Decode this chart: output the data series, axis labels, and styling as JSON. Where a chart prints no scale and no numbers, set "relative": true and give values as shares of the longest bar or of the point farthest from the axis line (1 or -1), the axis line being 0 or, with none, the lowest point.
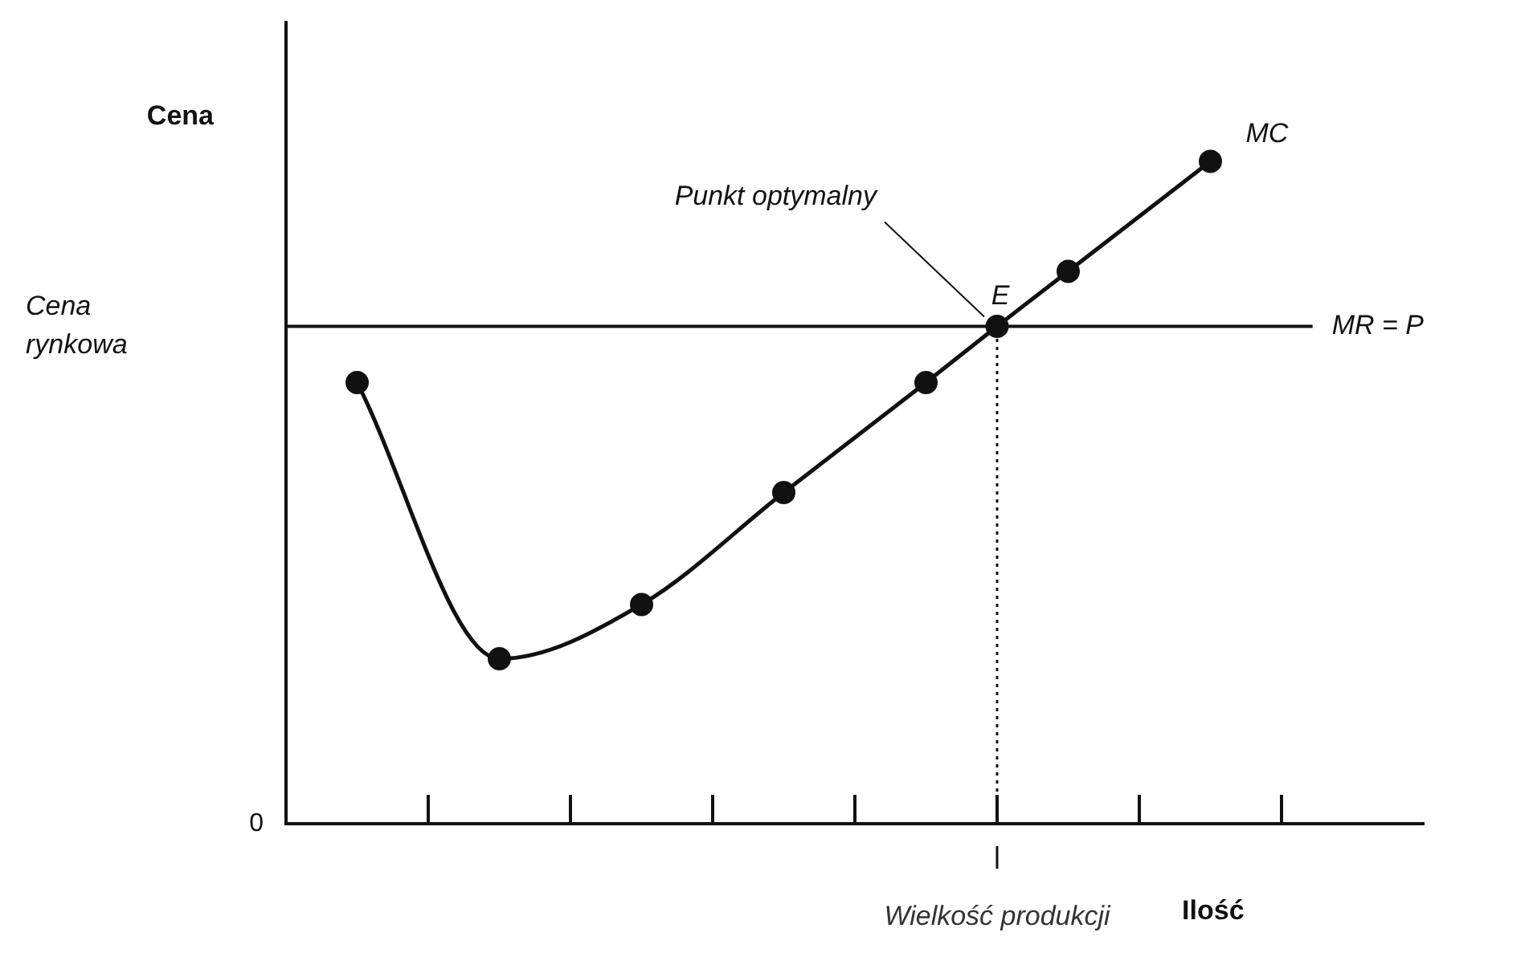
{
  "chart_data": {
    "type": "line",
    "ylabel": "Cena",
    "xlabel": "Ilość",
    "relative": true,
    "grid": false,
    "legend": false,
    "marker": "circle",
    "line_style": "solid",
    "categories": [
      null,
      null,
      null,
      null,
      null,
      null,
      null,
      null,
      null,
      null,
      null,
      null,
      null,
      null,
      null,
      null,
      null
    ],
    "series": [
      {
        "name": "MC",
        "color": "#111111",
        "values": [
          null,
          0.666,
          null,
          0.249,
          null,
          0.331,
          null,
          0.5,
          null,
          0.666,
          0.751,
          0.834,
          null,
          1,
          null,
          null,
          null
        ]
      }
    ],
    "ref_lines": [
      {
        "axis": "y",
        "value": 0.751,
        "label": "MR = P",
        "color": "#111111",
        "line_style": "solid"
      }
    ],
    "annotations": [
      "Punkt optymalny",
      {
        "text": "E",
        "y": 0.751
      },
      "Cena rynkowa",
      "Wielkość produkcji",
      "0"
    ]
  }
}
